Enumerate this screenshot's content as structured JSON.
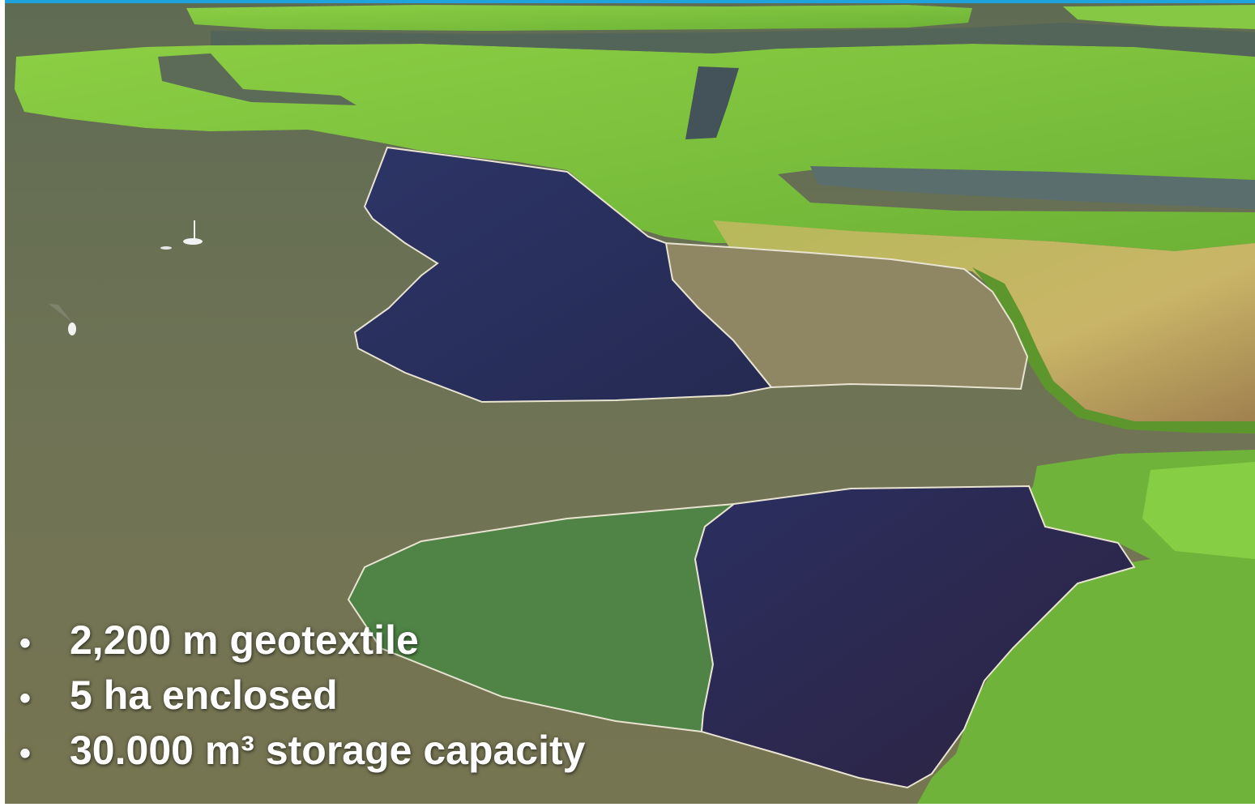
{
  "bullets": [
    {
      "text": "2,200 m geotextile"
    },
    {
      "text": "5 ha enclosed"
    },
    {
      "text": "30.000 m³ storage capacity"
    }
  ],
  "bullet_symbol": "•",
  "colors": {
    "accent_bar": "#1fa3dc",
    "lake_water": "#6f7355",
    "grass": "#7cc23c",
    "reed": "#5f9a2f",
    "enclosure_dark": "#2a2e5a",
    "enclosure_green": "#4f8446",
    "enclosure_tan": "#8f8763",
    "text": "#ffffff"
  }
}
